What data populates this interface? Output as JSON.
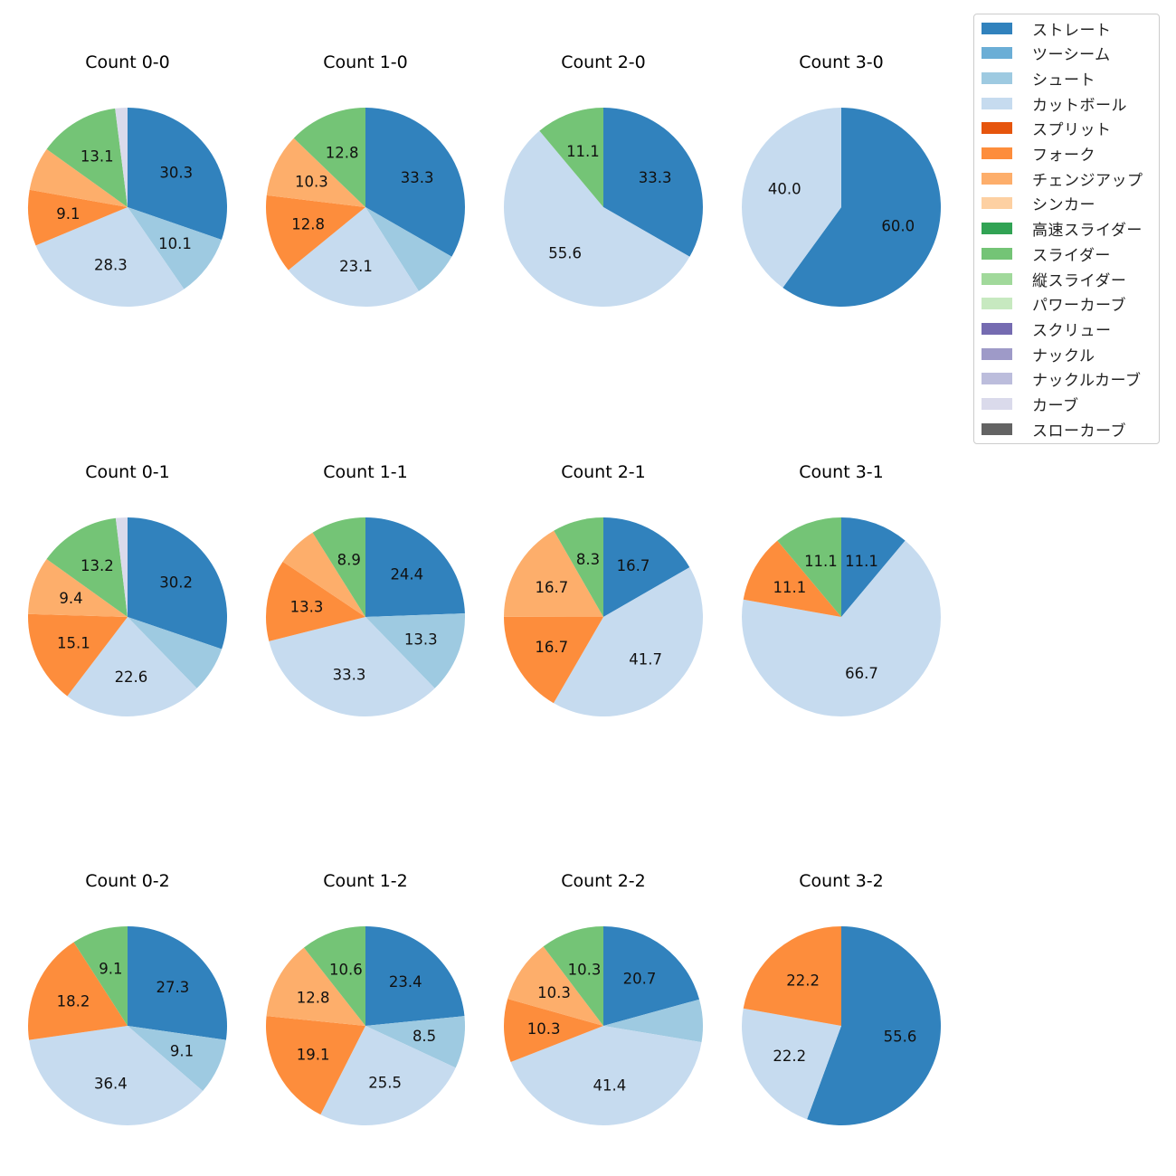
{
  "legend": {
    "items": [
      {
        "label": "ストレート",
        "color": "#3182bd"
      },
      {
        "label": "ツーシーム",
        "color": "#6baed6"
      },
      {
        "label": "シュート",
        "color": "#9ecae1"
      },
      {
        "label": "カットボール",
        "color": "#c6dbef"
      },
      {
        "label": "スプリット",
        "color": "#e6550d"
      },
      {
        "label": "フォーク",
        "color": "#fd8d3c"
      },
      {
        "label": "チェンジアップ",
        "color": "#fdae6b"
      },
      {
        "label": "シンカー",
        "color": "#fdd0a2"
      },
      {
        "label": "高速スライダー",
        "color": "#31a354"
      },
      {
        "label": "スライダー",
        "color": "#74c476"
      },
      {
        "label": "縦スライダー",
        "color": "#a1d99b"
      },
      {
        "label": "パワーカーブ",
        "color": "#c7e9c0"
      },
      {
        "label": "スクリュー",
        "color": "#756bb1"
      },
      {
        "label": "ナックル",
        "color": "#9e9ac8"
      },
      {
        "label": "ナックルカーブ",
        "color": "#bcbddc"
      },
      {
        "label": "カーブ",
        "color": "#dadaeb"
      },
      {
        "label": "スローカーブ",
        "color": "#636363"
      }
    ]
  },
  "chart_data": [
    {
      "type": "pie",
      "title": "Count 0-0",
      "slices": [
        {
          "label": "ストレート",
          "value": 30.3,
          "text": "30.3"
        },
        {
          "label": "シュート",
          "value": 10.1,
          "text": "10.1"
        },
        {
          "label": "カットボール",
          "value": 28.3,
          "text": "28.3"
        },
        {
          "label": "フォーク",
          "value": 9.1,
          "text": "9.1"
        },
        {
          "label": "チェンジアップ",
          "value": 7.1,
          "text": ""
        },
        {
          "label": "スライダー",
          "value": 13.1,
          "text": "13.1"
        },
        {
          "label": "カーブ",
          "value": 2.0,
          "text": ""
        }
      ]
    },
    {
      "type": "pie",
      "title": "Count 1-0",
      "slices": [
        {
          "label": "ストレート",
          "value": 33.3,
          "text": "33.3"
        },
        {
          "label": "シュート",
          "value": 7.7,
          "text": ""
        },
        {
          "label": "カットボール",
          "value": 23.1,
          "text": "23.1"
        },
        {
          "label": "フォーク",
          "value": 12.8,
          "text": "12.8"
        },
        {
          "label": "チェンジアップ",
          "value": 10.3,
          "text": "10.3"
        },
        {
          "label": "スライダー",
          "value": 12.8,
          "text": "12.8"
        }
      ]
    },
    {
      "type": "pie",
      "title": "Count 2-0",
      "slices": [
        {
          "label": "ストレート",
          "value": 33.3,
          "text": "33.3"
        },
        {
          "label": "カットボール",
          "value": 55.6,
          "text": "55.6"
        },
        {
          "label": "スライダー",
          "value": 11.1,
          "text": "11.1"
        }
      ]
    },
    {
      "type": "pie",
      "title": "Count 3-0",
      "slices": [
        {
          "label": "ストレート",
          "value": 60.0,
          "text": "60.0"
        },
        {
          "label": "カットボール",
          "value": 40.0,
          "text": "40.0"
        }
      ]
    },
    {
      "type": "pie",
      "title": "Count 0-1",
      "slices": [
        {
          "label": "ストレート",
          "value": 30.2,
          "text": "30.2"
        },
        {
          "label": "シュート",
          "value": 7.5,
          "text": ""
        },
        {
          "label": "カットボール",
          "value": 22.6,
          "text": "22.6"
        },
        {
          "label": "フォーク",
          "value": 15.1,
          "text": "15.1"
        },
        {
          "label": "チェンジアップ",
          "value": 9.4,
          "text": "9.4"
        },
        {
          "label": "スライダー",
          "value": 13.2,
          "text": "13.2"
        },
        {
          "label": "カーブ",
          "value": 1.9,
          "text": ""
        }
      ]
    },
    {
      "type": "pie",
      "title": "Count 1-1",
      "slices": [
        {
          "label": "ストレート",
          "value": 24.4,
          "text": "24.4"
        },
        {
          "label": "シュート",
          "value": 13.3,
          "text": "13.3"
        },
        {
          "label": "カットボール",
          "value": 33.3,
          "text": "33.3"
        },
        {
          "label": "フォーク",
          "value": 13.3,
          "text": "13.3"
        },
        {
          "label": "チェンジアップ",
          "value": 6.7,
          "text": ""
        },
        {
          "label": "スライダー",
          "value": 8.9,
          "text": "8.9"
        }
      ]
    },
    {
      "type": "pie",
      "title": "Count 2-1",
      "slices": [
        {
          "label": "ストレート",
          "value": 16.7,
          "text": "16.7"
        },
        {
          "label": "カットボール",
          "value": 41.7,
          "text": "41.7"
        },
        {
          "label": "フォーク",
          "value": 16.7,
          "text": "16.7"
        },
        {
          "label": "チェンジアップ",
          "value": 16.7,
          "text": "16.7"
        },
        {
          "label": "スライダー",
          "value": 8.3,
          "text": "8.3"
        }
      ]
    },
    {
      "type": "pie",
      "title": "Count 3-1",
      "slices": [
        {
          "label": "ストレート",
          "value": 11.1,
          "text": "11.1"
        },
        {
          "label": "カットボール",
          "value": 66.7,
          "text": "66.7"
        },
        {
          "label": "フォーク",
          "value": 11.1,
          "text": "11.1"
        },
        {
          "label": "スライダー",
          "value": 11.1,
          "text": "11.1"
        }
      ]
    },
    {
      "type": "pie",
      "title": "Count 0-2",
      "slices": [
        {
          "label": "ストレート",
          "value": 27.3,
          "text": "27.3"
        },
        {
          "label": "シュート",
          "value": 9.1,
          "text": "9.1"
        },
        {
          "label": "カットボール",
          "value": 36.4,
          "text": "36.4"
        },
        {
          "label": "フォーク",
          "value": 18.2,
          "text": "18.2"
        },
        {
          "label": "スライダー",
          "value": 9.1,
          "text": "9.1"
        }
      ]
    },
    {
      "type": "pie",
      "title": "Count 1-2",
      "slices": [
        {
          "label": "ストレート",
          "value": 23.4,
          "text": "23.4"
        },
        {
          "label": "シュート",
          "value": 8.5,
          "text": "8.5"
        },
        {
          "label": "カットボール",
          "value": 25.5,
          "text": "25.5"
        },
        {
          "label": "フォーク",
          "value": 19.1,
          "text": "19.1"
        },
        {
          "label": "チェンジアップ",
          "value": 12.8,
          "text": "12.8"
        },
        {
          "label": "スライダー",
          "value": 10.6,
          "text": "10.6"
        }
      ]
    },
    {
      "type": "pie",
      "title": "Count 2-2",
      "slices": [
        {
          "label": "ストレート",
          "value": 20.7,
          "text": "20.7"
        },
        {
          "label": "シュート",
          "value": 6.9,
          "text": ""
        },
        {
          "label": "カットボール",
          "value": 41.4,
          "text": "41.4"
        },
        {
          "label": "フォーク",
          "value": 10.3,
          "text": "10.3"
        },
        {
          "label": "チェンジアップ",
          "value": 10.3,
          "text": "10.3"
        },
        {
          "label": "スライダー",
          "value": 10.3,
          "text": "10.3"
        }
      ]
    },
    {
      "type": "pie",
      "title": "Count 3-2",
      "slices": [
        {
          "label": "ストレート",
          "value": 55.6,
          "text": "55.6"
        },
        {
          "label": "カットボール",
          "value": 22.2,
          "text": "22.2"
        },
        {
          "label": "フォーク",
          "value": 22.2,
          "text": "22.2"
        }
      ]
    }
  ]
}
